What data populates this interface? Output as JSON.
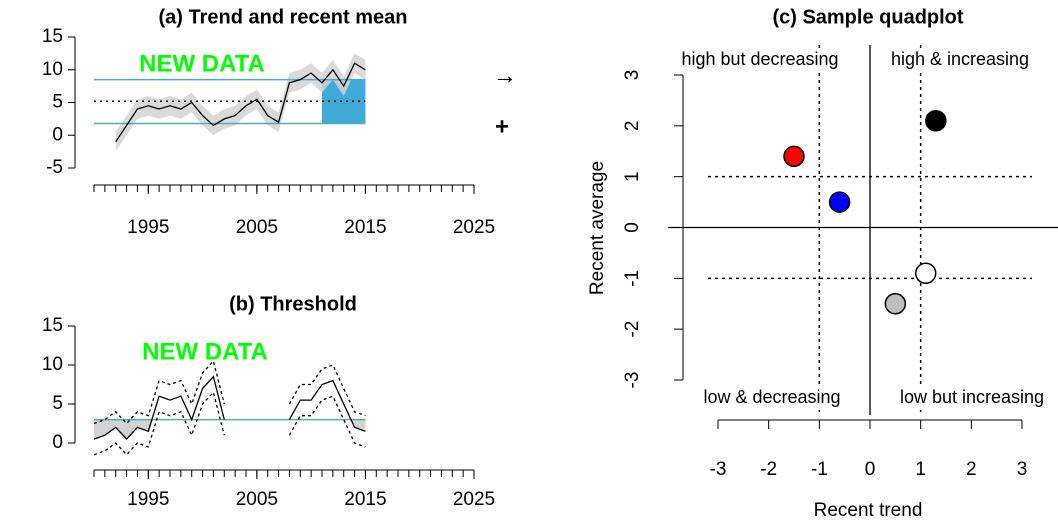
{
  "chart_data": [
    {
      "type": "line",
      "title": "(a) Trend and recent mean",
      "x": [
        1992,
        1993,
        1994,
        1995,
        1996,
        1997,
        1998,
        1999,
        2000,
        2001,
        2002,
        2003,
        2004,
        2005,
        2006,
        2007,
        2008,
        2009,
        2010,
        2011,
        2012,
        2013,
        2014,
        2015
      ],
      "values": [
        -1,
        1.5,
        4,
        4.5,
        4,
        4.5,
        4,
        5,
        3,
        1.5,
        2.5,
        3,
        4.5,
        5.5,
        3,
        2,
        8,
        8.5,
        9.5,
        8,
        10,
        7.5,
        11,
        10
      ],
      "lower": [
        -2.5,
        0,
        2.5,
        3,
        2.5,
        3,
        2.5,
        3.5,
        1.5,
        0,
        1,
        1.5,
        3,
        4,
        1.5,
        0.5,
        6.5,
        7,
        8,
        6.5,
        8.5,
        6,
        9.5,
        8.5
      ],
      "upper": [
        0.5,
        3,
        5.5,
        6,
        5.5,
        6,
        5.5,
        6.5,
        4.5,
        3,
        4,
        4.5,
        6,
        7,
        4.5,
        3.5,
        9.5,
        10,
        11,
        9.5,
        11.5,
        9,
        12.5,
        11.5
      ],
      "color": "#000000",
      "band_color": "#d3d3d3",
      "mean": 5.2,
      "sd_lines": [
        1.8,
        8.5
      ],
      "sd_color": "#4bacc6",
      "recent": [
        2011,
        2015
      ],
      "recent_color": "#3fa9d8",
      "annotation": "NEW DATA",
      "annotation_color": "#00ff00",
      "arrow": "→",
      "plus": "+",
      "xlim": [
        1990,
        2025
      ],
      "xticks": [
        1995,
        2005,
        2015,
        2025
      ],
      "xminorticks": [
        1990,
        1991,
        1992,
        1993,
        1994,
        1995,
        1996,
        1997,
        1998,
        1999,
        2000,
        2001,
        2002,
        2003,
        2004,
        2005,
        2006,
        2007,
        2008,
        2009,
        2010,
        2011,
        2012,
        2013,
        2014,
        2015,
        2016,
        2017,
        2018,
        2019,
        2020,
        2021,
        2022,
        2023,
        2024,
        2025
      ],
      "ylim": [
        -5,
        15
      ],
      "yticks": [
        -5,
        0,
        5,
        10,
        15
      ]
    },
    {
      "type": "line",
      "title": "(b) Threshold",
      "x": [
        1990,
        1991,
        1992,
        1993,
        1994,
        1995,
        1996,
        1997,
        1998,
        1999,
        2000,
        2001,
        2002,
        2003,
        2004,
        2005,
        2006,
        2007,
        2008,
        2009,
        2010,
        2011,
        2012,
        2013,
        2014,
        2015
      ],
      "values": [
        0.5,
        1,
        2,
        0.5,
        2,
        1.5,
        6,
        5.5,
        6,
        3,
        7,
        8.5,
        3,
        null,
        null,
        null,
        null,
        null,
        3,
        5.5,
        5.5,
        7.5,
        8,
        5,
        2,
        1.5
      ],
      "lower": [
        -1.5,
        -1,
        0,
        -1.5,
        0,
        -0.5,
        4,
        3.5,
        4,
        1,
        5,
        6.5,
        1,
        null,
        null,
        null,
        null,
        null,
        1,
        3.5,
        3.5,
        5.5,
        6,
        3,
        0,
        -0.5
      ],
      "upper": [
        2.5,
        3,
        4,
        2.5,
        4,
        3.5,
        8,
        7.5,
        8,
        5,
        9,
        10.5,
        5,
        null,
        null,
        null,
        null,
        null,
        5,
        7.5,
        7.5,
        9.5,
        10,
        7,
        4,
        3.5
      ],
      "color": "#000000",
      "band_color": "#d3d3d3",
      "threshold": 3,
      "threshold_color": "#4bacc6",
      "annotation": "NEW DATA",
      "annotation_color": "#00ff00",
      "xlim": [
        1990,
        2025
      ],
      "xticks": [
        1995,
        2005,
        2015,
        2025
      ],
      "xminorticks": [
        1990,
        1991,
        1992,
        1993,
        1994,
        1995,
        1996,
        1997,
        1998,
        1999,
        2000,
        2001,
        2002,
        2003,
        2004,
        2005,
        2006,
        2007,
        2008,
        2009,
        2010,
        2011,
        2012,
        2013,
        2014,
        2015,
        2016,
        2017,
        2018,
        2019,
        2020,
        2021,
        2022,
        2023,
        2024,
        2025
      ],
      "ylim": [
        0,
        15
      ],
      "yticks": [
        0,
        5,
        10,
        15
      ]
    },
    {
      "type": "scatter",
      "title": "(c) Sample quadplot",
      "xlabel": "Recent trend",
      "ylabel": "Recent average",
      "x": [
        -1.5,
        -0.6,
        1.3,
        1.1,
        0.5
      ],
      "y": [
        1.4,
        0.5,
        2.1,
        -0.9,
        -1.5
      ],
      "colors": [
        "#ff0000",
        "#0000ff",
        "#000000",
        "#ffffff",
        "#bebebe"
      ],
      "xthresholds": [
        -1,
        1
      ],
      "ythresholds": [
        -1,
        1
      ],
      "quadrant_labels": [
        "high but decreasing",
        "high & increasing",
        "low & decreasing",
        "low but increasing"
      ],
      "xlim": [
        -3,
        3
      ],
      "xticks": [
        -3,
        -2,
        -1,
        0,
        1,
        2,
        3
      ],
      "ylim": [
        -3,
        3
      ],
      "yticks": [
        -3,
        -2,
        -1,
        0,
        1,
        2,
        3
      ]
    }
  ]
}
